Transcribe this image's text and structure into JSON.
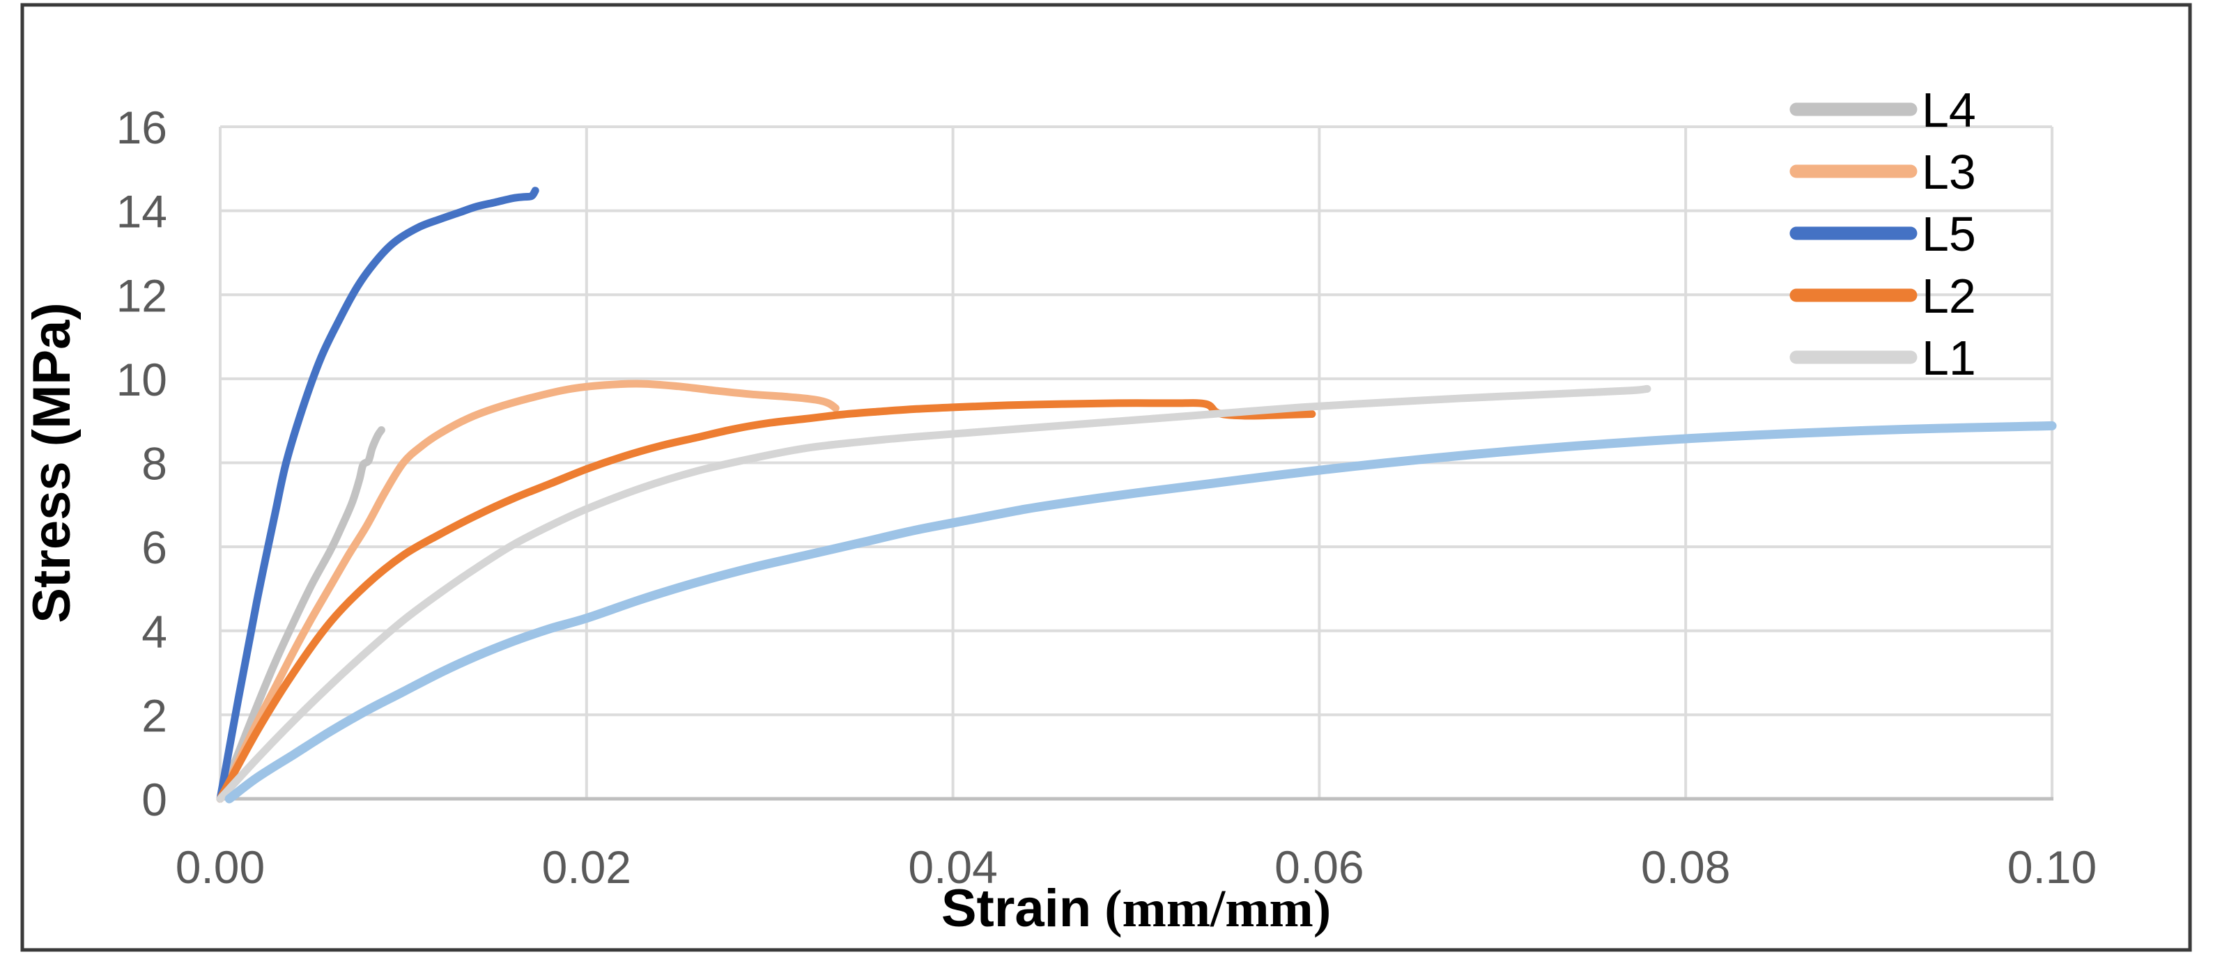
{
  "chart_data": {
    "type": "line",
    "title": "",
    "xlabel": "Strain (mm/mm)",
    "xlabel_parts": {
      "name": "Strain",
      "unit": " (mm/mm)"
    },
    "ylabel": "Stress (MPa)",
    "xlim": [
      0,
      0.1
    ],
    "ylim": [
      0,
      16
    ],
    "x_ticks": [
      0,
      0.02,
      0.04,
      0.06,
      0.08,
      0.1
    ],
    "x_tick_labels": [
      "0.00",
      "0.02",
      "0.04",
      "0.06",
      "0.08",
      "0.10"
    ],
    "y_ticks": [
      0,
      2,
      4,
      6,
      8,
      10,
      12,
      14,
      16
    ],
    "y_tick_labels": [
      "0",
      "2",
      "4",
      "6",
      "8",
      "10",
      "12",
      "14",
      "16"
    ],
    "grid": true,
    "legend_position": "top-right",
    "legend_entries": [
      "L4",
      "L3",
      "L5",
      "L2",
      "L1"
    ],
    "colors": {
      "grid": "#DCDCDC",
      "axis_line": "#BFBFBF",
      "tick_label": "#595959",
      "axis_title": "#000000",
      "legend_label": "#000000",
      "frame_border": "#3A3A3A",
      "background": "#FFFFFF"
    },
    "series": [
      {
        "name": "L4",
        "color": "#C2C2C2",
        "in_legend": true,
        "points": [
          [
            0,
            0
          ],
          [
            0.001,
            1.1
          ],
          [
            0.002,
            2.2
          ],
          [
            0.003,
            3.25
          ],
          [
            0.004,
            4.2
          ],
          [
            0.005,
            5.1
          ],
          [
            0.006,
            5.9
          ],
          [
            0.0066,
            6.45
          ],
          [
            0.0072,
            7.05
          ],
          [
            0.0076,
            7.6
          ],
          [
            0.0078,
            7.95
          ],
          [
            0.0081,
            8.05
          ],
          [
            0.0083,
            8.35
          ],
          [
            0.0086,
            8.65
          ],
          [
            0.0088,
            8.78
          ]
        ]
      },
      {
        "name": "L3",
        "color": "#F4B183",
        "in_legend": true,
        "points": [
          [
            0,
            0
          ],
          [
            0.001,
            0.9
          ],
          [
            0.002,
            1.8
          ],
          [
            0.003,
            2.65
          ],
          [
            0.004,
            3.5
          ],
          [
            0.005,
            4.3
          ],
          [
            0.006,
            5.05
          ],
          [
            0.007,
            5.8
          ],
          [
            0.008,
            6.5
          ],
          [
            0.009,
            7.3
          ],
          [
            0.01,
            8.0
          ],
          [
            0.011,
            8.4
          ],
          [
            0.012,
            8.7
          ],
          [
            0.0135,
            9.05
          ],
          [
            0.015,
            9.3
          ],
          [
            0.017,
            9.55
          ],
          [
            0.019,
            9.75
          ],
          [
            0.021,
            9.85
          ],
          [
            0.023,
            9.88
          ],
          [
            0.025,
            9.82
          ],
          [
            0.027,
            9.72
          ],
          [
            0.029,
            9.63
          ],
          [
            0.031,
            9.57
          ],
          [
            0.0325,
            9.5
          ],
          [
            0.0332,
            9.42
          ],
          [
            0.0336,
            9.3
          ]
        ]
      },
      {
        "name": "L5",
        "color": "#4472C4",
        "in_legend": true,
        "points": [
          [
            0,
            0
          ],
          [
            0.001,
            2.4
          ],
          [
            0.002,
            4.7
          ],
          [
            0.003,
            6.8
          ],
          [
            0.0036,
            8.0
          ],
          [
            0.0045,
            9.3
          ],
          [
            0.0055,
            10.5
          ],
          [
            0.0065,
            11.4
          ],
          [
            0.0075,
            12.2
          ],
          [
            0.0085,
            12.8
          ],
          [
            0.0095,
            13.25
          ],
          [
            0.0108,
            13.6
          ],
          [
            0.012,
            13.8
          ],
          [
            0.013,
            13.95
          ],
          [
            0.014,
            14.1
          ],
          [
            0.015,
            14.2
          ],
          [
            0.016,
            14.3
          ],
          [
            0.0166,
            14.33
          ],
          [
            0.017,
            14.35
          ],
          [
            0.0172,
            14.48
          ]
        ]
      },
      {
        "name": "L2",
        "color": "#ED7D31",
        "in_legend": true,
        "points": [
          [
            0,
            0
          ],
          [
            0.002,
            1.6
          ],
          [
            0.004,
            3.0
          ],
          [
            0.006,
            4.2
          ],
          [
            0.008,
            5.1
          ],
          [
            0.01,
            5.8
          ],
          [
            0.012,
            6.3
          ],
          [
            0.014,
            6.75
          ],
          [
            0.016,
            7.15
          ],
          [
            0.018,
            7.5
          ],
          [
            0.02,
            7.85
          ],
          [
            0.022,
            8.15
          ],
          [
            0.024,
            8.4
          ],
          [
            0.026,
            8.6
          ],
          [
            0.028,
            8.8
          ],
          [
            0.03,
            8.95
          ],
          [
            0.032,
            9.05
          ],
          [
            0.034,
            9.15
          ],
          [
            0.036,
            9.22
          ],
          [
            0.038,
            9.28
          ],
          [
            0.04,
            9.32
          ],
          [
            0.043,
            9.37
          ],
          [
            0.046,
            9.4
          ],
          [
            0.049,
            9.42
          ],
          [
            0.052,
            9.42
          ],
          [
            0.0538,
            9.4
          ],
          [
            0.0545,
            9.18
          ],
          [
            0.056,
            9.12
          ],
          [
            0.058,
            9.14
          ],
          [
            0.0596,
            9.16
          ]
        ]
      },
      {
        "name": "L1",
        "color": "#D5D5D5",
        "in_legend": true,
        "points": [
          [
            0,
            0
          ],
          [
            0.002,
            0.95
          ],
          [
            0.004,
            1.85
          ],
          [
            0.006,
            2.7
          ],
          [
            0.008,
            3.5
          ],
          [
            0.01,
            4.25
          ],
          [
            0.012,
            4.9
          ],
          [
            0.014,
            5.5
          ],
          [
            0.016,
            6.05
          ],
          [
            0.018,
            6.5
          ],
          [
            0.02,
            6.9
          ],
          [
            0.023,
            7.4
          ],
          [
            0.026,
            7.8
          ],
          [
            0.029,
            8.1
          ],
          [
            0.032,
            8.35
          ],
          [
            0.035,
            8.5
          ],
          [
            0.038,
            8.62
          ],
          [
            0.041,
            8.72
          ],
          [
            0.044,
            8.82
          ],
          [
            0.047,
            8.92
          ],
          [
            0.05,
            9.02
          ],
          [
            0.053,
            9.12
          ],
          [
            0.056,
            9.22
          ],
          [
            0.059,
            9.32
          ],
          [
            0.062,
            9.4
          ],
          [
            0.065,
            9.47
          ],
          [
            0.068,
            9.54
          ],
          [
            0.071,
            9.6
          ],
          [
            0.074,
            9.66
          ],
          [
            0.077,
            9.72
          ],
          [
            0.0779,
            9.76
          ]
        ]
      },
      {
        "name": "",
        "color": "#9DC3E6",
        "in_legend": false,
        "points": [
          [
            0.0005,
            0
          ],
          [
            0.002,
            0.5
          ],
          [
            0.004,
            1.05
          ],
          [
            0.006,
            1.6
          ],
          [
            0.008,
            2.1
          ],
          [
            0.01,
            2.55
          ],
          [
            0.012,
            3.0
          ],
          [
            0.014,
            3.4
          ],
          [
            0.016,
            3.75
          ],
          [
            0.018,
            4.05
          ],
          [
            0.02,
            4.3
          ],
          [
            0.023,
            4.75
          ],
          [
            0.026,
            5.15
          ],
          [
            0.029,
            5.5
          ],
          [
            0.032,
            5.8
          ],
          [
            0.035,
            6.1
          ],
          [
            0.038,
            6.4
          ],
          [
            0.041,
            6.65
          ],
          [
            0.044,
            6.9
          ],
          [
            0.047,
            7.1
          ],
          [
            0.05,
            7.28
          ],
          [
            0.054,
            7.5
          ],
          [
            0.058,
            7.72
          ],
          [
            0.062,
            7.92
          ],
          [
            0.066,
            8.1
          ],
          [
            0.07,
            8.26
          ],
          [
            0.074,
            8.4
          ],
          [
            0.078,
            8.52
          ],
          [
            0.082,
            8.62
          ],
          [
            0.086,
            8.7
          ],
          [
            0.09,
            8.77
          ],
          [
            0.094,
            8.82
          ],
          [
            0.098,
            8.86
          ],
          [
            0.1,
            8.88
          ]
        ]
      }
    ]
  }
}
